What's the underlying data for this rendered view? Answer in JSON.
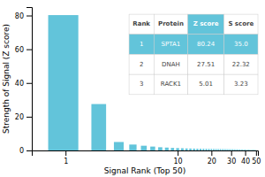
{
  "chart_data": {
    "type": "bar",
    "x": [
      1,
      2,
      3,
      4,
      5,
      6,
      7,
      8,
      9,
      10,
      11,
      12,
      13,
      14,
      15,
      16,
      17,
      18,
      19,
      20,
      21,
      22,
      23,
      24,
      25,
      26,
      27,
      28,
      29,
      30,
      31,
      32,
      33,
      34,
      35,
      36,
      37,
      38,
      39,
      40,
      41,
      42,
      43,
      44,
      45,
      46,
      47,
      48,
      49,
      50
    ],
    "values": [
      80.24,
      27.51,
      5.01,
      3.5,
      2.8,
      2.3,
      1.9,
      1.7,
      1.5,
      1.4,
      1.3,
      1.2,
      1.15,
      1.1,
      1.05,
      1.02,
      1.0,
      0.98,
      0.96,
      0.94,
      0.92,
      0.9,
      0.88,
      0.86,
      0.84,
      0.82,
      0.8,
      0.78,
      0.76,
      0.74,
      0.72,
      0.7,
      0.68,
      0.66,
      0.64,
      0.62,
      0.6,
      0.58,
      0.56,
      0.54,
      0.52,
      0.5,
      0.48,
      0.46,
      0.44,
      0.42,
      0.4,
      0.38,
      0.36,
      0.34
    ],
    "color": "#62c4da",
    "xlabel": "Signal Rank (Top 50)",
    "ylabel": "Strength of Signal (Z score)",
    "xlim": [
      0.5,
      52
    ],
    "ylim": [
      0,
      85
    ],
    "xticks": [
      1,
      10,
      20,
      30,
      40,
      50
    ],
    "yticks": [
      0,
      20,
      40,
      60,
      80
    ],
    "log": "x",
    "grid": false,
    "table": {
      "headers": [
        "Rank",
        "Protein",
        "Z score",
        "S score"
      ],
      "rows": [
        [
          "1",
          "SPTA1",
          "80.24",
          "35.0"
        ],
        [
          "2",
          "DNAH",
          "27.51",
          "22.32"
        ],
        [
          "3",
          "RACK1",
          "5.01",
          "3.23"
        ]
      ]
    }
  }
}
